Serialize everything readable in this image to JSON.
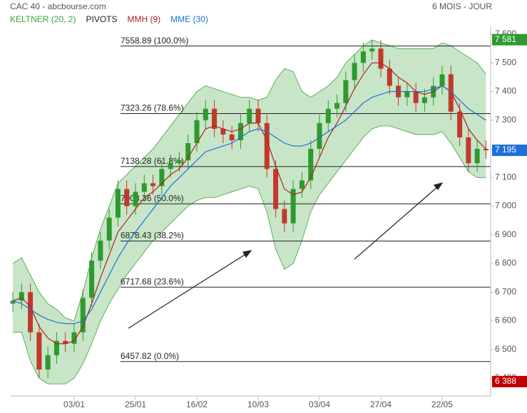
{
  "chart_data": {
    "type": "candlestick",
    "title": "CAC 40 - abcbourse.com",
    "period": "6 MOIS - JOUR",
    "categories": [
      null,
      null,
      null,
      null,
      null,
      null,
      null,
      "03/01",
      null,
      null,
      null,
      null,
      null,
      null,
      "25/01",
      null,
      null,
      null,
      null,
      null,
      null,
      "16/02",
      null,
      null,
      null,
      null,
      null,
      null,
      "10/03",
      null,
      null,
      null,
      null,
      null,
      null,
      "03/04",
      null,
      null,
      null,
      null,
      null,
      null,
      "27/04",
      null,
      null,
      null,
      null,
      null,
      null,
      "22/05",
      null,
      null,
      null,
      null,
      null
    ],
    "open": [
      6660,
      6670,
      6700,
      6560,
      6430,
      6480,
      6530,
      6520,
      6560,
      6680,
      6810,
      6880,
      6960,
      7060,
      7000,
      7050,
      7080,
      7070,
      7130,
      7150,
      7160,
      7220,
      7300,
      7340,
      7270,
      7250,
      7230,
      7290,
      7340,
      7290,
      7130,
      6990,
      6940,
      7060,
      7090,
      7200,
      7290,
      7340,
      7360,
      7440,
      7500,
      7540,
      7550,
      7480,
      7420,
      7380,
      7400,
      7360,
      7380,
      7420,
      7460,
      7330,
      7240,
      7150,
      7200
    ],
    "high": [
      6700,
      6730,
      6730,
      6590,
      6510,
      6560,
      6560,
      6590,
      6710,
      6840,
      6910,
      6990,
      7090,
      7090,
      7080,
      7110,
      7110,
      7160,
      7180,
      7190,
      7250,
      7330,
      7370,
      7370,
      7300,
      7280,
      7320,
      7370,
      7370,
      7320,
      7160,
      7020,
      7090,
      7120,
      7230,
      7320,
      7370,
      7390,
      7470,
      7530,
      7570,
      7580,
      7580,
      7510,
      7450,
      7430,
      7430,
      7410,
      7450,
      7490,
      7490,
      7360,
      7270,
      7230,
      7230
    ],
    "low": [
      6630,
      6640,
      6530,
      6400,
      6400,
      6450,
      6490,
      6490,
      6530,
      6650,
      6780,
      6850,
      6930,
      6970,
      6970,
      7020,
      7040,
      7040,
      7100,
      7120,
      7130,
      7190,
      7270,
      7240,
      7220,
      7200,
      7200,
      7260,
      7260,
      7100,
      6960,
      6910,
      6910,
      7030,
      7060,
      7170,
      7260,
      7310,
      7330,
      7410,
      7470,
      7510,
      7450,
      7390,
      7350,
      7350,
      7330,
      7330,
      7350,
      7390,
      7300,
      7210,
      7120,
      7120,
      7165
    ],
    "close": [
      6670,
      6700,
      6560,
      6430,
      6480,
      6530,
      6520,
      6560,
      6680,
      6810,
      6880,
      6960,
      7060,
      7000,
      7050,
      7080,
      7070,
      7130,
      7150,
      7160,
      7220,
      7300,
      7340,
      7270,
      7250,
      7230,
      7290,
      7340,
      7290,
      7130,
      6990,
      6940,
      7060,
      7090,
      7200,
      7290,
      7340,
      7360,
      7440,
      7500,
      7540,
      7550,
      7480,
      7420,
      7380,
      7400,
      7360,
      7380,
      7420,
      7460,
      7330,
      7240,
      7150,
      7200,
      7195
    ],
    "up_color": "#2e9a2e",
    "down_color": "#c0392b",
    "band": {
      "name": "KELTNER (20, 2)",
      "color": "#3aa33a",
      "upper": [
        6800,
        6820,
        6760,
        6700,
        6660,
        6640,
        6610,
        6600,
        6700,
        6820,
        6920,
        7000,
        7080,
        7110,
        7140,
        7170,
        7200,
        7240,
        7280,
        7320,
        7360,
        7400,
        7420,
        7410,
        7400,
        7390,
        7380,
        7380,
        7370,
        7380,
        7440,
        7480,
        7470,
        7400,
        7380,
        7400,
        7420,
        7450,
        7500,
        7530,
        7560,
        7580,
        7570,
        7560,
        7550,
        7550,
        7550,
        7550,
        7550,
        7570,
        7560,
        7540,
        7520,
        7500,
        7460
      ],
      "lower": [
        6560,
        6560,
        6460,
        6400,
        6380,
        6380,
        6380,
        6400,
        6450,
        6520,
        6600,
        6660,
        6710,
        6760,
        6800,
        6840,
        6880,
        6910,
        6940,
        6970,
        7000,
        7020,
        7030,
        7030,
        7040,
        7050,
        7060,
        7070,
        7060,
        6980,
        6850,
        6780,
        6800,
        6880,
        6980,
        7040,
        7080,
        7120,
        7160,
        7200,
        7240,
        7270,
        7280,
        7280,
        7270,
        7260,
        7250,
        7250,
        7250,
        7260,
        7220,
        7170,
        7120,
        7100,
        7100
      ]
    },
    "pivots": {
      "name": "PIVOTS",
      "color": "#222222",
      "levels": [
        {
          "value": 7558.89,
          "label": "7558.89 (100.0%)"
        },
        {
          "value": 7323.26,
          "label": "7323.26 (78.6%)"
        },
        {
          "value": 7138.28,
          "label": "7138.28 (61.8%)"
        },
        {
          "value": 7008.36,
          "label": "7008.36 (50.0%)"
        },
        {
          "value": 6878.43,
          "label": "6878.43 (38.2%)"
        },
        {
          "value": 6717.68,
          "label": "6717.68 (23.6%)"
        },
        {
          "value": 6457.82,
          "label": "6457.82 (0.0%)"
        }
      ]
    },
    "series": [
      {
        "name": "MMH (9)",
        "color": "#b22222",
        "values": [
          6670,
          6680,
          6650,
          6580,
          6540,
          6520,
          6520,
          6530,
          6580,
          6660,
          6750,
          6830,
          6910,
          6950,
          6990,
          7030,
          7050,
          7080,
          7110,
          7130,
          7170,
          7220,
          7270,
          7280,
          7270,
          7260,
          7270,
          7290,
          7290,
          7230,
          7140,
          7060,
          7040,
          7050,
          7100,
          7170,
          7240,
          7290,
          7350,
          7410,
          7460,
          7500,
          7500,
          7480,
          7450,
          7430,
          7400,
          7390,
          7400,
          7420,
          7400,
          7340,
          7270,
          7230,
          7200
        ]
      },
      {
        "name": "MME (30)",
        "color": "#1e6fd9",
        "values": [
          6670,
          6660,
          6640,
          6620,
          6605,
          6595,
          6590,
          6590,
          6600,
          6640,
          6700,
          6760,
          6820,
          6870,
          6910,
          6950,
          6990,
          7030,
          7070,
          7100,
          7130,
          7160,
          7190,
          7200,
          7210,
          7220,
          7240,
          7260,
          7270,
          7260,
          7240,
          7220,
          7210,
          7210,
          7220,
          7240,
          7260,
          7280,
          7300,
          7330,
          7360,
          7380,
          7390,
          7400,
          7400,
          7400,
          7400,
          7400,
          7410,
          7420,
          7400,
          7370,
          7340,
          7320,
          7300
        ]
      }
    ],
    "price_tags": [
      {
        "value": 7581,
        "label": "7 581",
        "color": "#2e9a2e"
      },
      {
        "value": 7195,
        "label": "7 195",
        "color": "#1e6fd9"
      },
      {
        "value": 6388,
        "label": "6 388",
        "color": "#c00000"
      }
    ],
    "ylim": [
      6338,
      7630
    ],
    "yticks": [
      {
        "value": 6400,
        "label": "6 400"
      },
      {
        "value": 6500,
        "label": "6 500"
      },
      {
        "value": 6600,
        "label": "6 600"
      },
      {
        "value": 6700,
        "label": "6 700"
      },
      {
        "value": 6800,
        "label": "6 800"
      },
      {
        "value": 6900,
        "label": "6 900"
      },
      {
        "value": 7000,
        "label": "7 000"
      },
      {
        "value": 7100,
        "label": "7 100"
      },
      {
        "value": 7200,
        "label": "7 200"
      },
      {
        "value": 7300,
        "label": "7 300"
      },
      {
        "value": 7400,
        "label": "7 400"
      },
      {
        "value": 7500,
        "label": "7 500"
      },
      {
        "value": 7600,
        "label": "7 600"
      }
    ]
  }
}
